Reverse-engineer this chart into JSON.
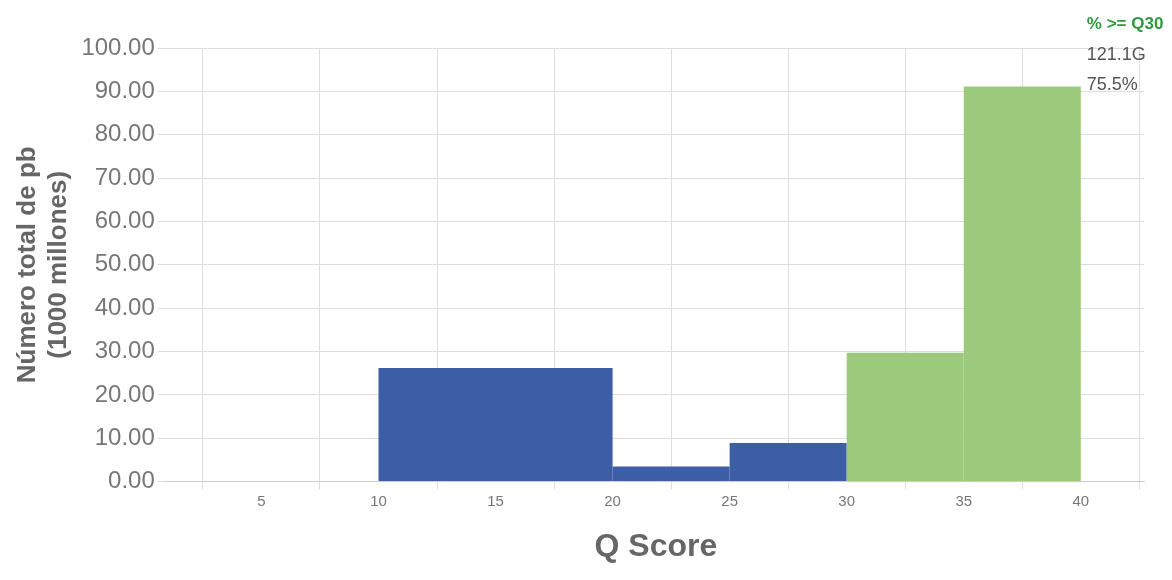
{
  "chart_data": {
    "type": "histogram",
    "xlabel": "Q Score",
    "ylabel": "Número total de pb\n(1000 millones)",
    "bins": [
      10,
      20,
      25,
      30,
      35,
      40
    ],
    "values": [
      26.2,
      3.5,
      8.9,
      29.7,
      91.1
    ],
    "colors": [
      "#3b5ea6",
      "#3b5ea6",
      "#3b5ea6",
      "#9cca7c",
      "#9cca7c"
    ],
    "xlim": [
      1,
      42.7
    ],
    "xticks": [
      5,
      10,
      15,
      20,
      25,
      30,
      35,
      40
    ],
    "ylim": [
      0,
      100
    ],
    "yticks": [
      {
        "value": 0,
        "label": "0.00"
      },
      {
        "value": 10,
        "label": "10.00"
      },
      {
        "value": 20,
        "label": "20.00"
      },
      {
        "value": 30,
        "label": "30.00"
      },
      {
        "value": 40,
        "label": "40.00"
      },
      {
        "value": 50,
        "label": "50.00"
      },
      {
        "value": 60,
        "label": "60.00"
      },
      {
        "value": 70,
        "label": "70.00"
      },
      {
        "value": 80,
        "label": "80.00"
      },
      {
        "value": 90,
        "label": "90.00"
      },
      {
        "value": 100,
        "label": "100.00"
      }
    ],
    "grid": true,
    "annotations": [
      "% >= Q30",
      "121.1G",
      "75.5%"
    ]
  }
}
